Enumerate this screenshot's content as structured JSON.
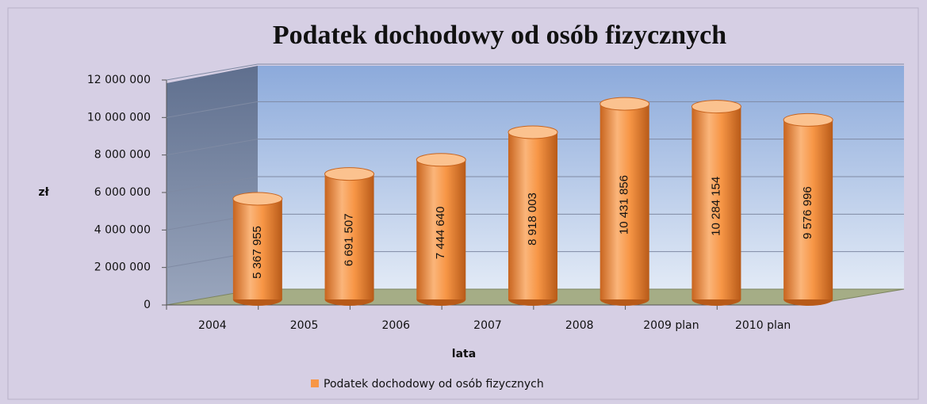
{
  "chart_data": {
    "type": "bar3d",
    "title": "Podatek dochodowy od osób fizycznych",
    "x_label": "lata",
    "y_label": "zł",
    "categories": [
      "2004",
      "2005",
      "2006",
      "2007",
      "2008",
      "2009 plan",
      "2010 plan"
    ],
    "series": [
      {
        "name": "Podatek dochodowy od osób fizycznych",
        "color": "#f79646",
        "values": [
          5367955,
          6691507,
          7444640,
          8918003,
          10431856,
          10284154,
          9576996
        ],
        "value_labels": [
          "5 367 955",
          "6 691 507",
          "7 444 640",
          "8 918 003",
          "10 431 856",
          "10 284 154",
          "9 576 996"
        ]
      }
    ],
    "ylim": [
      0,
      12000000
    ],
    "yticks": [
      0,
      {
        "value": 2000000,
        "label": "2 000 000"
      },
      {
        "value": 4000000,
        "label": "4 000 000"
      },
      {
        "value": 6000000,
        "label": "6 000 000"
      },
      {
        "value": 8000000,
        "label": "8 000 000"
      },
      {
        "value": 10000000,
        "label": "10 000 000"
      },
      {
        "value": 12000000,
        "label": "12 000 000"
      }
    ],
    "grid": true,
    "legend": "bottom"
  }
}
